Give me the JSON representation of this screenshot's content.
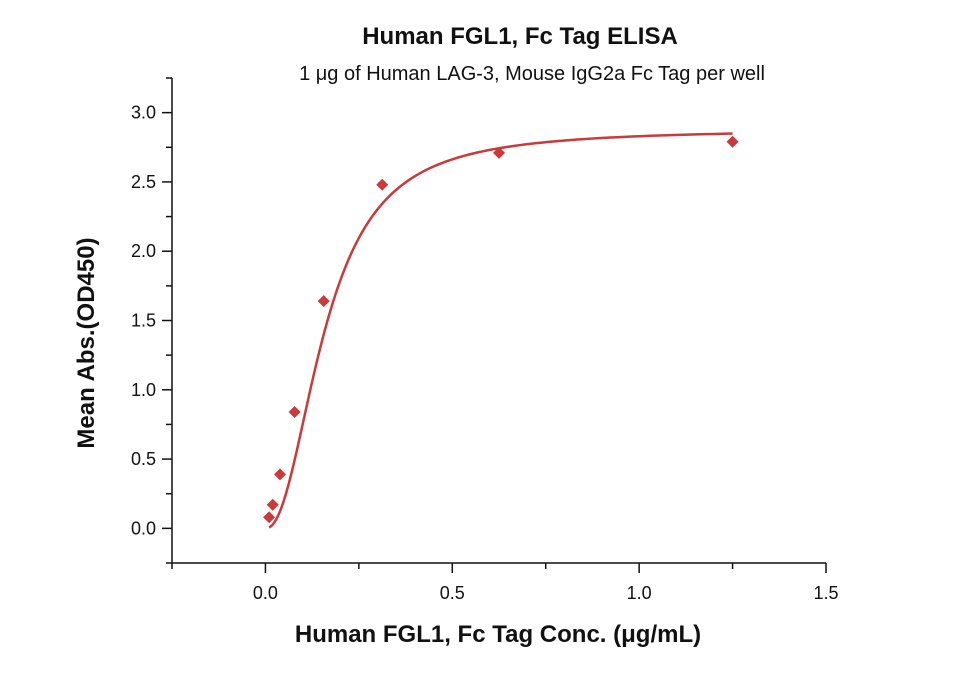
{
  "chart_data": {
    "type": "scatter",
    "title": "Human FGL1, Fc Tag ELISA",
    "subtitle": "1 μg of Human LAG-3, Mouse IgG2a Fc Tag per well",
    "xlabel": "Human FGL1, Fc Tag Conc. (μg/mL)",
    "ylabel": "Mean Abs.(OD450)",
    "xlim": [
      -0.25,
      1.5
    ],
    "ylim": [
      -0.25,
      3.25
    ],
    "x_ticks": [
      0.0,
      0.5,
      1.0,
      1.5
    ],
    "x_tick_labels": [
      "0.0",
      "0.5",
      "1.0",
      "1.5"
    ],
    "y_ticks": [
      0.0,
      0.5,
      1.0,
      1.5,
      2.0,
      2.5,
      3.0
    ],
    "y_tick_labels": [
      "0.0",
      "0.5",
      "1.0",
      "1.5",
      "2.0",
      "2.5",
      "3.0"
    ],
    "grid": false,
    "series": [
      {
        "x": [
          0.0098,
          0.0195,
          0.039,
          0.078,
          0.156,
          0.3125,
          0.625,
          1.25
        ],
        "y": [
          0.08,
          0.17,
          0.39,
          0.84,
          1.64,
          2.48,
          2.71,
          2.79
        ],
        "marker": "diamond",
        "color": "#c93a3a",
        "fit": "4PL",
        "fit_params": {
          "A": 0.0,
          "D": 2.88,
          "C": 0.16,
          "B": 2.2
        }
      }
    ]
  }
}
